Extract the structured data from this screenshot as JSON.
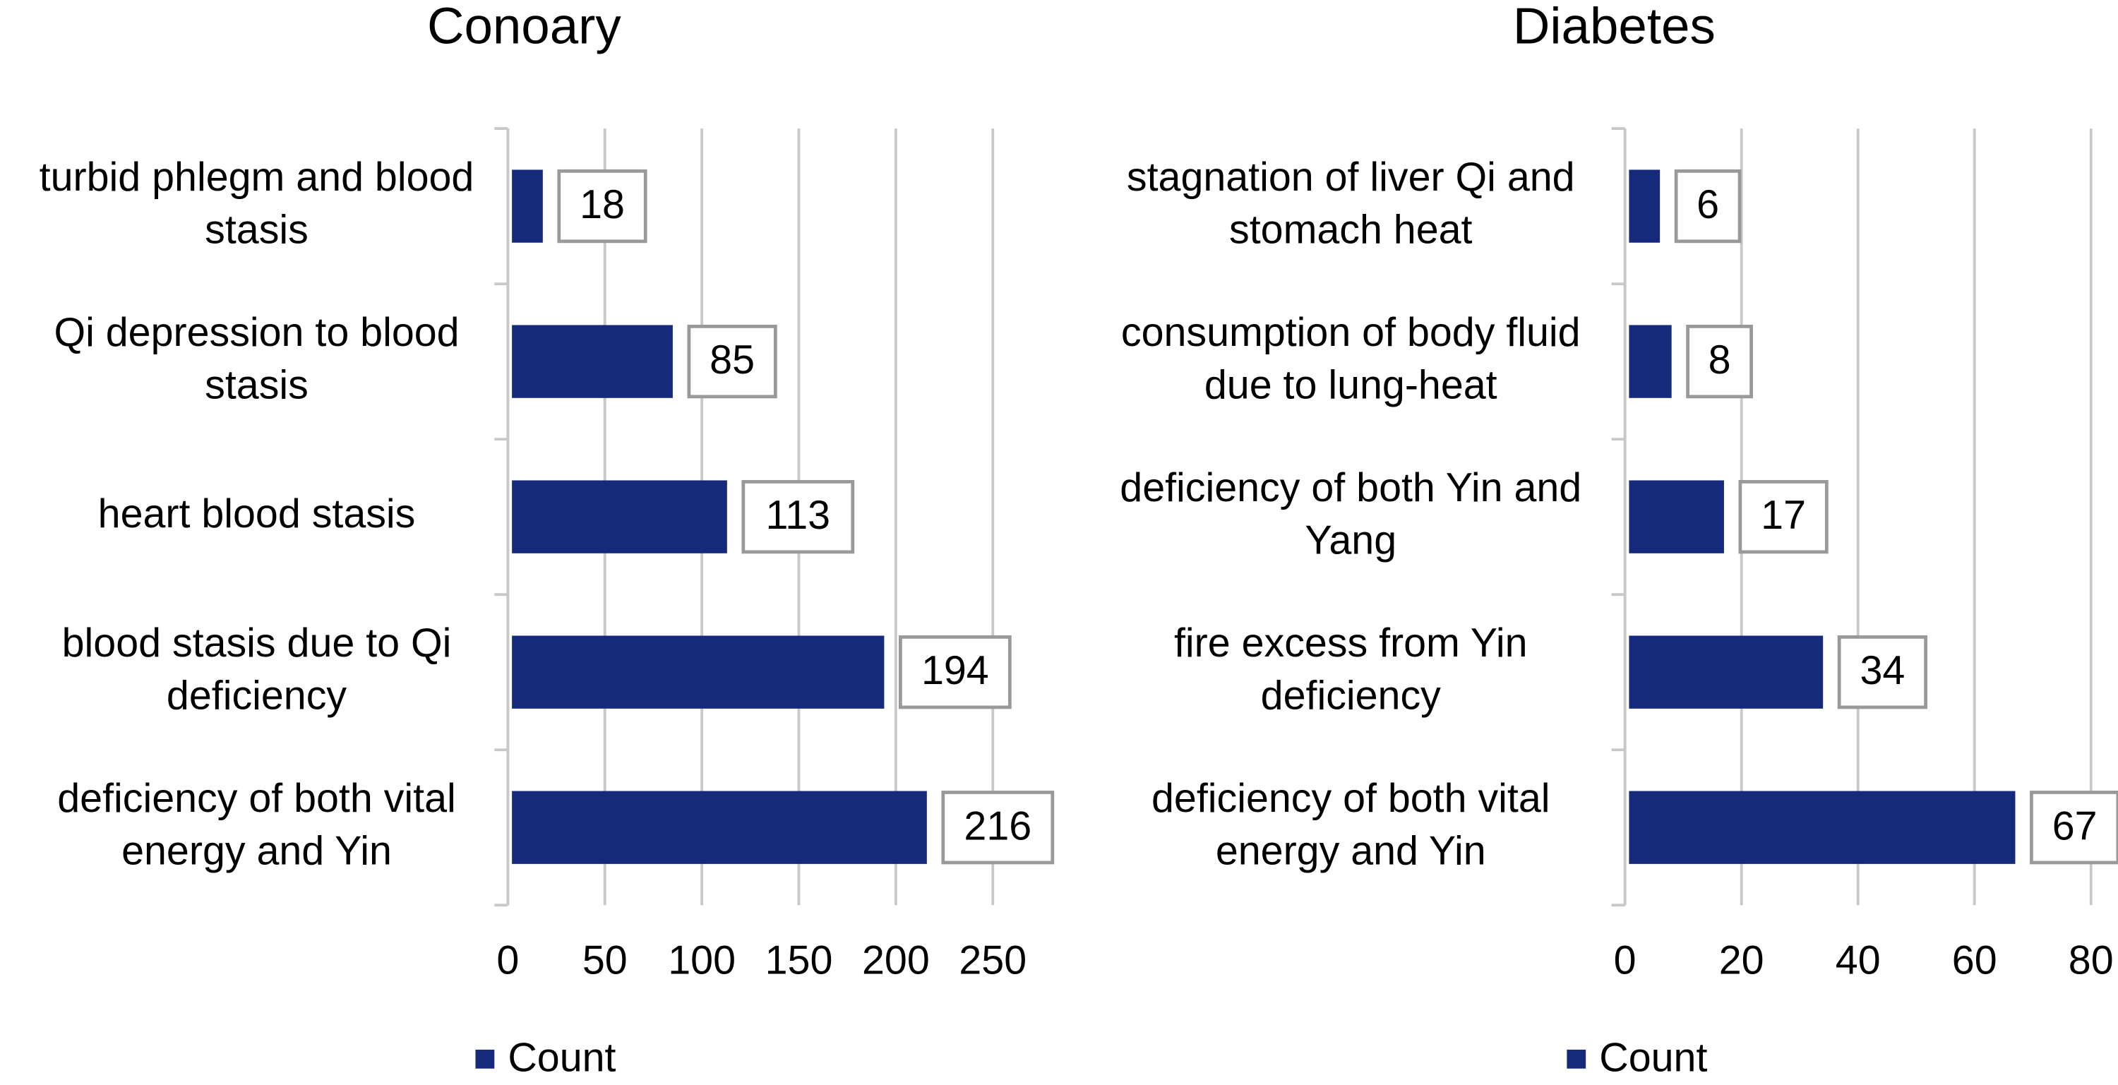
{
  "chart_data": [
    {
      "type": "bar",
      "orientation": "horizontal",
      "title": "Conoary",
      "categories": [
        "turbid phlegm and blood stasis",
        "Qi depression to blood stasis",
        "heart blood stasis",
        "blood stasis due to Qi deficiency",
        "deficiency of both vital energy and Yin"
      ],
      "series": [
        {
          "name": "Count",
          "color": "#152a7a",
          "values": [
            18,
            85,
            113,
            194,
            216
          ]
        }
      ],
      "xlim": [
        0,
        250
      ],
      "xticks": [
        0,
        50,
        100,
        150,
        200,
        250
      ],
      "grid": true,
      "legend": "bottom"
    },
    {
      "type": "bar",
      "orientation": "horizontal",
      "title": "Diabetes",
      "categories": [
        "stagnation of liver Qi and stomach heat",
        "consumption of body fluid due to lung-heat",
        "deficiency of both Yin and Yang",
        "fire excess from Yin deficiency",
        "deficiency of both vital energy and Yin"
      ],
      "series": [
        {
          "name": "Count",
          "color": "#152a7a",
          "values": [
            6,
            8,
            17,
            34,
            67
          ]
        }
      ],
      "xlim": [
        0,
        80
      ],
      "xticks": [
        0,
        20,
        40,
        60,
        80
      ],
      "grid": true,
      "legend": "bottom"
    }
  ]
}
